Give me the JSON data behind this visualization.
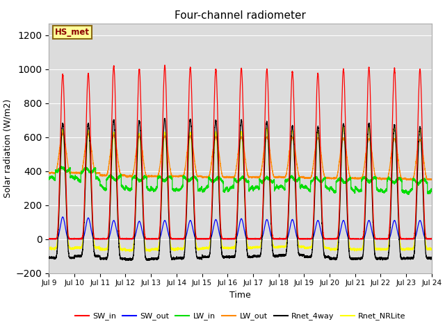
{
  "title": "Four-channel radiometer",
  "xlabel": "Time",
  "ylabel": "Solar radiation (W/m2)",
  "ylim": [
    -200,
    1270
  ],
  "yticks": [
    -200,
    0,
    200,
    400,
    600,
    800,
    1000,
    1200
  ],
  "start_day": 9,
  "end_day": 24,
  "num_days": 15,
  "annotation_text": "HS_met",
  "annotation_bg": "#FFFF99",
  "annotation_border": "#8B6914",
  "annotation_text_color": "#8B0000",
  "bg_color": "#DCDCDC",
  "colors": {
    "SW_in": "#FF0000",
    "SW_out": "#0000FF",
    "LW_in": "#00DD00",
    "LW_out": "#FF8800",
    "Rnet_4way": "#000000",
    "Rnet_NRLite": "#FFFF00"
  },
  "legend_labels": [
    "SW_in",
    "SW_out",
    "LW_in",
    "LW_out",
    "Rnet_4way",
    "Rnet_NRLite"
  ],
  "points_per_day": 480,
  "SW_in_peak": [
    970,
    975,
    1020,
    1000,
    1020,
    1010,
    1000,
    1005,
    1000,
    985,
    975,
    1000,
    1010,
    1005,
    1000
  ],
  "SW_out_peak": [
    130,
    125,
    110,
    105,
    110,
    110,
    115,
    120,
    115,
    115,
    110,
    110,
    110,
    110,
    110
  ],
  "LW_in_base": [
    410,
    405,
    360,
    355,
    355,
    355,
    350,
    350,
    350,
    355,
    350,
    345,
    350,
    345,
    340
  ],
  "LW_out_base": [
    390,
    390,
    375,
    370,
    370,
    370,
    365,
    365,
    365,
    365,
    360,
    358,
    358,
    355,
    352
  ],
  "LW_out_peak": [
    620,
    620,
    610,
    605,
    605,
    605,
    600,
    600,
    600,
    598,
    595,
    592,
    590,
    588,
    585
  ],
  "Rnet_4way_peak": [
    680,
    680,
    700,
    695,
    710,
    705,
    695,
    700,
    690,
    665,
    660,
    680,
    680,
    670,
    660
  ],
  "Rnet_NRLite_peak": [
    640,
    635,
    625,
    620,
    630,
    625,
    625,
    630,
    650,
    640,
    635,
    660,
    655,
    660,
    650
  ],
  "Rnet_4way_night": [
    -110,
    -100,
    -115,
    -120,
    -115,
    -112,
    -105,
    -105,
    -100,
    -95,
    -105,
    -115,
    -115,
    -115,
    -112
  ],
  "Rnet_NRLite_night": [
    -55,
    -50,
    -60,
    -65,
    -60,
    -58,
    -52,
    -52,
    -48,
    -45,
    -52,
    -60,
    -60,
    -60,
    -58
  ]
}
